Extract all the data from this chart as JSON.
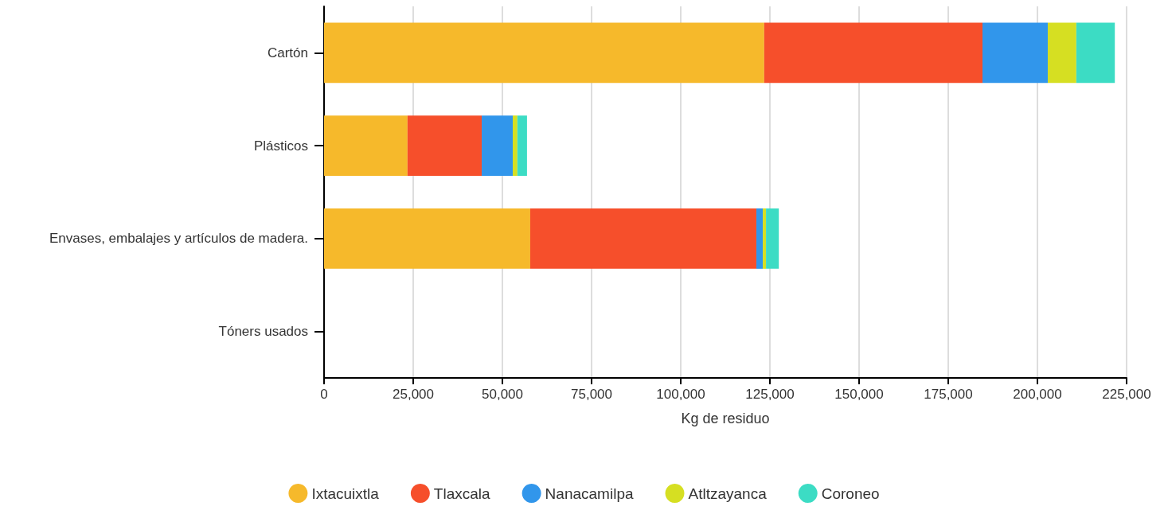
{
  "chart_data": {
    "type": "bar",
    "orientation": "horizontal",
    "stacked": true,
    "categories": [
      "Cartón",
      "Plásticos",
      "Envases, embalajes y artículos de madera.",
      "Tóners usados"
    ],
    "series": [
      {
        "name": "Ixtacuixtla",
        "color": "#f6b92b",
        "values": [
          123400,
          23400,
          57800,
          0
        ]
      },
      {
        "name": "Tlaxcala",
        "color": "#f64f2b",
        "values": [
          61200,
          20800,
          63400,
          0
        ]
      },
      {
        "name": "Nanacamilpa",
        "color": "#3196eb",
        "values": [
          18300,
          8700,
          1800,
          0
        ]
      },
      {
        "name": "Atltzayanca",
        "color": "#d6df22",
        "values": [
          8000,
          1300,
          900,
          0
        ]
      },
      {
        "name": "Coroneo",
        "color": "#3cdcc4",
        "values": [
          10800,
          2700,
          3600,
          0
        ]
      }
    ],
    "xlabel": "Kg de residuo",
    "xlim": [
      0,
      225000
    ],
    "xticks": [
      0,
      {
        "value": 25000,
        "label": "25,000"
      },
      {
        "value": 50000,
        "label": "50,000"
      },
      {
        "value": 75000,
        "label": "75,000"
      },
      {
        "value": 100000,
        "label": "100,000"
      },
      {
        "value": 125000,
        "label": "125,000"
      },
      {
        "value": 150000,
        "label": "150,000"
      },
      {
        "value": 175000,
        "label": "175,000"
      },
      {
        "value": 200000,
        "label": "200,000"
      },
      {
        "value": 225000,
        "label": "225,000"
      }
    ],
    "grid": "x",
    "legend": "bottom"
  }
}
